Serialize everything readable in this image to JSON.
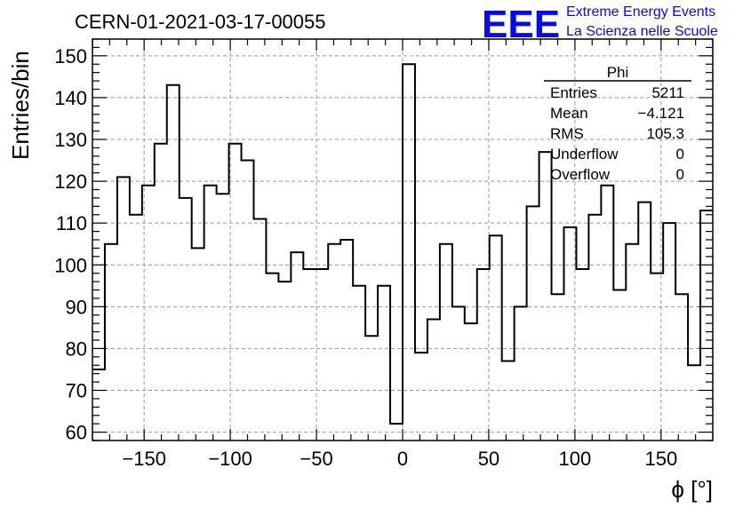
{
  "chart_data": {
    "type": "bar",
    "title": "CERN-01-2021-03-17-00055",
    "xlabel": "ϕ [°]",
    "ylabel": "Entries/bin",
    "xlim": [
      -180,
      180
    ],
    "ylim": [
      58,
      154
    ],
    "xticks": [
      -150,
      -100,
      -50,
      0,
      50,
      100,
      150
    ],
    "yticks": [
      60,
      70,
      80,
      90,
      100,
      110,
      120,
      130,
      140,
      150
    ],
    "grid": true,
    "bin_width": 7.2,
    "x_start": -180,
    "values": [
      75,
      105,
      121,
      112,
      119,
      129,
      143,
      116,
      104,
      119,
      117,
      129,
      125,
      111,
      98,
      96,
      103,
      99,
      99,
      105,
      106,
      95,
      83,
      95,
      62,
      148,
      79,
      87,
      105,
      90,
      86,
      99,
      107,
      77,
      90,
      114,
      127,
      93,
      109,
      99,
      112,
      119,
      94,
      105,
      115,
      98,
      110,
      93,
      76,
      113
    ],
    "stats": {
      "name": "Phi",
      "rows": [
        {
          "label": "Entries",
          "value": "5211"
        },
        {
          "label": "Mean",
          "value": "−4.121"
        },
        {
          "label": "RMS",
          "value": "105.3"
        },
        {
          "label": "Underflow",
          "value": "0"
        },
        {
          "label": "Overflow",
          "value": "0"
        }
      ]
    }
  },
  "logo": {
    "mark": "EEE",
    "line1": "Extreme Energy Events",
    "line2": "La Scienza nelle Scuole",
    "color": "#0a0ae8"
  }
}
